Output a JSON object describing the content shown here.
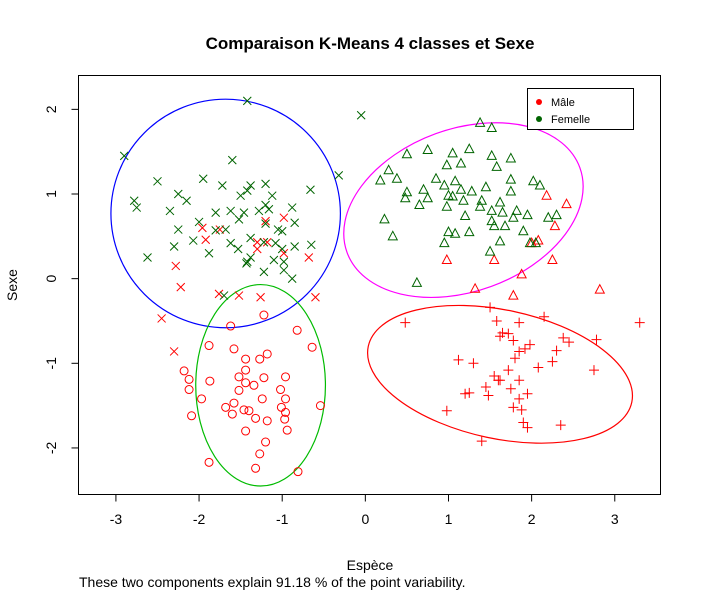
{
  "chart_data": {
    "type": "scatter",
    "title": "Comparaison K-Means 4 classes et Sexe",
    "xlabel": "Espèce",
    "ylabel": "Sexe",
    "xlim": [
      -3.45,
      3.55
    ],
    "ylim": [
      -2.55,
      2.4
    ],
    "x_ticks": [
      -3,
      -2,
      -1,
      0,
      1,
      2,
      3
    ],
    "y_ticks": [
      -2,
      -1,
      0,
      1,
      2
    ],
    "grid": false,
    "legend": {
      "position": "top-right",
      "entries": [
        {
          "label": "Mâle",
          "color": "#ff0000"
        },
        {
          "label": "Femelle",
          "color": "#006400"
        }
      ]
    },
    "footnote": "These two components explain 91.18 % of the point variability.",
    "clusters": [
      {
        "marker": "x",
        "ellipse_color": "#0000ff",
        "ellipse": {
          "cx": -1.68,
          "cy": 0.77,
          "rx": 1.38,
          "ry": 1.35,
          "angle": 0
        }
      },
      {
        "marker": "triangle",
        "ellipse_color": "#ff00ff",
        "ellipse": {
          "cx": 1.18,
          "cy": 0.81,
          "rx": 1.49,
          "ry": 0.96,
          "angle": -20
        }
      },
      {
        "marker": "circle",
        "ellipse_color": "#00bb00",
        "ellipse": {
          "cx": -1.26,
          "cy": -1.26,
          "rx": 0.78,
          "ry": 1.19,
          "angle": 0
        }
      },
      {
        "marker": "plus",
        "ellipse_color": "#ff0000",
        "ellipse": {
          "cx": 1.62,
          "cy": -1.13,
          "rx": 1.62,
          "ry": 0.76,
          "angle": 12
        }
      }
    ],
    "series": [
      {
        "name": "Mâle",
        "color": "#ff0000",
        "points": [
          [
            -0.98,
            0.72
          ],
          [
            -1.2,
            0.68
          ],
          [
            -1.96,
            0.6
          ],
          [
            -1.75,
            0.58
          ],
          [
            -1.92,
            0.46
          ],
          [
            -2.28,
            0.15
          ],
          [
            -1.18,
            0.43
          ],
          [
            -0.68,
            0.25
          ],
          [
            -1.3,
            0.43
          ],
          [
            -1.3,
            0.35
          ],
          [
            -0.98,
            0.3
          ],
          [
            -2.22,
            -0.1
          ],
          [
            -1.76,
            -0.18
          ],
          [
            -1.52,
            -0.2
          ],
          [
            -2.45,
            -0.47
          ],
          [
            -0.6,
            -0.22
          ],
          [
            -1.26,
            -0.22
          ],
          [
            2.08,
            0.45
          ],
          [
            2.0,
            0.42
          ],
          [
            1.88,
            0.05
          ],
          [
            2.18,
            0.98
          ],
          [
            2.28,
            0.62
          ],
          [
            2.42,
            0.88
          ],
          [
            0.98,
            0.22
          ],
          [
            1.55,
            0.22
          ],
          [
            2.25,
            0.22
          ],
          [
            -1.62,
            -0.56
          ],
          [
            -1.88,
            -0.79
          ],
          [
            -1.58,
            -0.83
          ],
          [
            -2.3,
            -0.86
          ],
          [
            -0.82,
            -0.61
          ],
          [
            -1.22,
            -0.43
          ],
          [
            -0.64,
            -0.81
          ],
          [
            -1.18,
            -0.89
          ],
          [
            -1.44,
            -0.95
          ],
          [
            -1.27,
            -0.95
          ],
          [
            -2.18,
            -1.09
          ],
          [
            -1.44,
            -1.08
          ],
          [
            -1.52,
            -1.16
          ],
          [
            -2.12,
            -1.19
          ],
          [
            -1.22,
            -1.17
          ],
          [
            -1.44,
            -1.23
          ],
          [
            -0.96,
            -1.16
          ],
          [
            -1.87,
            -1.21
          ],
          [
            -2.12,
            -1.31
          ],
          [
            -1.52,
            -1.32
          ],
          [
            -1.34,
            -1.26
          ],
          [
            -1.02,
            -1.31
          ],
          [
            -1.97,
            -1.42
          ],
          [
            -1.58,
            -1.47
          ],
          [
            -1.24,
            -1.42
          ],
          [
            -0.96,
            -1.42
          ],
          [
            -0.54,
            -1.5
          ],
          [
            -1.68,
            -1.52
          ],
          [
            -1.4,
            -1.56
          ],
          [
            -1.6,
            -1.6
          ],
          [
            -1.46,
            -1.55
          ],
          [
            -1.01,
            -1.52
          ],
          [
            -0.96,
            -1.58
          ],
          [
            -2.09,
            -1.62
          ],
          [
            -1.32,
            -1.65
          ],
          [
            -1.18,
            -1.68
          ],
          [
            -0.97,
            -1.66
          ],
          [
            -0.94,
            -1.79
          ],
          [
            -1.44,
            -1.8
          ],
          [
            -1.2,
            -1.93
          ],
          [
            -1.27,
            -2.07
          ],
          [
            -1.88,
            -2.17
          ],
          [
            -1.32,
            -2.24
          ],
          [
            -0.81,
            -2.28
          ],
          [
            0.48,
            -0.52
          ],
          [
            1.32,
            -0.12
          ],
          [
            1.78,
            -0.2
          ],
          [
            1.5,
            -0.34
          ],
          [
            1.58,
            -0.5
          ],
          [
            1.65,
            -0.64
          ],
          [
            1.85,
            -0.52
          ],
          [
            1.72,
            -0.65
          ],
          [
            1.78,
            -0.73
          ],
          [
            1.62,
            -0.68
          ],
          [
            1.85,
            -0.86
          ],
          [
            1.98,
            -0.78
          ],
          [
            1.92,
            -0.83
          ],
          [
            2.15,
            -0.45
          ],
          [
            2.3,
            -0.85
          ],
          [
            2.25,
            -0.98
          ],
          [
            2.38,
            -0.7
          ],
          [
            2.45,
            -0.75
          ],
          [
            2.78,
            -0.72
          ],
          [
            2.75,
            -1.08
          ],
          [
            2.82,
            -0.13
          ],
          [
            3.3,
            -0.52
          ],
          [
            2.08,
            -1.05
          ],
          [
            1.72,
            -1.08
          ],
          [
            1.8,
            -0.94
          ],
          [
            1.55,
            -1.15
          ],
          [
            1.62,
            -1.2
          ],
          [
            1.6,
            -1.2
          ],
          [
            1.3,
            -1.0
          ],
          [
            1.12,
            -0.96
          ],
          [
            1.45,
            -1.28
          ],
          [
            1.48,
            -1.38
          ],
          [
            1.2,
            -1.36
          ],
          [
            1.25,
            -1.35
          ],
          [
            1.75,
            -1.3
          ],
          [
            1.85,
            -1.42
          ],
          [
            1.95,
            -1.36
          ],
          [
            1.78,
            -1.52
          ],
          [
            1.88,
            -1.55
          ],
          [
            1.9,
            -1.7
          ],
          [
            1.95,
            -1.76
          ],
          [
            0.98,
            -1.56
          ],
          [
            1.4,
            -1.92
          ],
          [
            2.35,
            -1.73
          ],
          [
            1.85,
            -1.2
          ]
        ]
      },
      {
        "name": "Femelle",
        "color": "#006400",
        "points": [
          [
            -1.42,
            2.1
          ],
          [
            -2.9,
            1.45
          ],
          [
            -1.6,
            1.4
          ],
          [
            -2.5,
            1.15
          ],
          [
            -1.95,
            1.18
          ],
          [
            -2.25,
            1.0
          ],
          [
            -1.72,
            1.1
          ],
          [
            -1.38,
            1.1
          ],
          [
            -1.42,
            1.04
          ],
          [
            -1.2,
            1.12
          ],
          [
            -2.78,
            0.92
          ],
          [
            -2.15,
            0.92
          ],
          [
            -1.5,
            0.98
          ],
          [
            -1.12,
            0.98
          ],
          [
            -2.75,
            0.84
          ],
          [
            -2.35,
            0.8
          ],
          [
            -1.62,
            0.8
          ],
          [
            -1.2,
            0.87
          ],
          [
            -1.16,
            0.82
          ],
          [
            -0.88,
            0.84
          ],
          [
            -1.8,
            0.78
          ],
          [
            -1.46,
            0.78
          ],
          [
            -1.28,
            0.8
          ],
          [
            -2.0,
            0.67
          ],
          [
            -1.52,
            0.7
          ],
          [
            -1.2,
            0.65
          ],
          [
            -0.85,
            0.66
          ],
          [
            -2.25,
            0.58
          ],
          [
            -1.8,
            0.57
          ],
          [
            -1.68,
            0.58
          ],
          [
            -1.05,
            0.58
          ],
          [
            -1.0,
            0.56
          ],
          [
            -2.07,
            0.45
          ],
          [
            -1.62,
            0.42
          ],
          [
            -1.38,
            0.48
          ],
          [
            -1.22,
            0.43
          ],
          [
            -1.08,
            0.42
          ],
          [
            -1.53,
            0.35
          ],
          [
            -2.3,
            0.38
          ],
          [
            -1.88,
            0.3
          ],
          [
            -1.0,
            0.35
          ],
          [
            -0.85,
            0.38
          ],
          [
            -0.65,
            0.4
          ],
          [
            -2.62,
            0.25
          ],
          [
            -1.38,
            0.25
          ],
          [
            -1.1,
            0.22
          ],
          [
            -0.98,
            0.2
          ],
          [
            -1.43,
            0.18
          ],
          [
            -0.98,
            0.1
          ],
          [
            -1.22,
            0.08
          ],
          [
            -0.88,
            0.0
          ],
          [
            -1.42,
            0.2
          ],
          [
            -0.32,
            1.22
          ],
          [
            -1.7,
            -0.2
          ],
          [
            -0.05,
            1.93
          ],
          [
            1.38,
            1.84
          ],
          [
            1.52,
            1.78
          ],
          [
            1.25,
            1.53
          ],
          [
            0.75,
            1.52
          ],
          [
            1.05,
            1.48
          ],
          [
            1.52,
            1.45
          ],
          [
            0.5,
            1.47
          ],
          [
            1.15,
            1.36
          ],
          [
            1.75,
            1.42
          ],
          [
            0.28,
            1.28
          ],
          [
            0.98,
            1.34
          ],
          [
            1.58,
            1.32
          ],
          [
            0.18,
            1.16
          ],
          [
            0.38,
            1.18
          ],
          [
            0.85,
            1.18
          ],
          [
            1.08,
            1.15
          ],
          [
            1.75,
            1.17
          ],
          [
            2.02,
            1.15
          ],
          [
            2.1,
            1.1
          ],
          [
            0.5,
            1.02
          ],
          [
            0.7,
            1.05
          ],
          [
            0.95,
            1.1
          ],
          [
            1.15,
            1.05
          ],
          [
            1.28,
            1.03
          ],
          [
            1.45,
            1.08
          ],
          [
            1.75,
            1.03
          ],
          [
            0.48,
            0.95
          ],
          [
            0.75,
            0.95
          ],
          [
            1.0,
            0.98
          ],
          [
            1.05,
            0.97
          ],
          [
            1.18,
            0.92
          ],
          [
            1.4,
            0.92
          ],
          [
            1.62,
            0.9
          ],
          [
            0.65,
            0.87
          ],
          [
            0.98,
            0.85
          ],
          [
            1.38,
            0.85
          ],
          [
            1.2,
            0.74
          ],
          [
            1.52,
            0.8
          ],
          [
            1.82,
            0.8
          ],
          [
            1.65,
            0.78
          ],
          [
            1.78,
            0.72
          ],
          [
            0.23,
            0.7
          ],
          [
            1.95,
            0.75
          ],
          [
            2.2,
            0.72
          ],
          [
            2.3,
            0.75
          ],
          [
            1.52,
            0.68
          ],
          [
            0.33,
            0.5
          ],
          [
            1.0,
            0.55
          ],
          [
            1.08,
            0.53
          ],
          [
            1.25,
            0.55
          ],
          [
            1.55,
            0.62
          ],
          [
            1.68,
            0.62
          ],
          [
            1.9,
            0.56
          ],
          [
            0.95,
            0.42
          ],
          [
            1.62,
            0.44
          ],
          [
            1.98,
            0.42
          ],
          [
            2.05,
            0.42
          ],
          [
            1.5,
            0.32
          ],
          [
            0.62,
            -0.05
          ],
          [
            -0.66,
            1.05
          ]
        ]
      }
    ],
    "cluster_sizes": [
      73,
      54,
      44,
      38
    ]
  }
}
